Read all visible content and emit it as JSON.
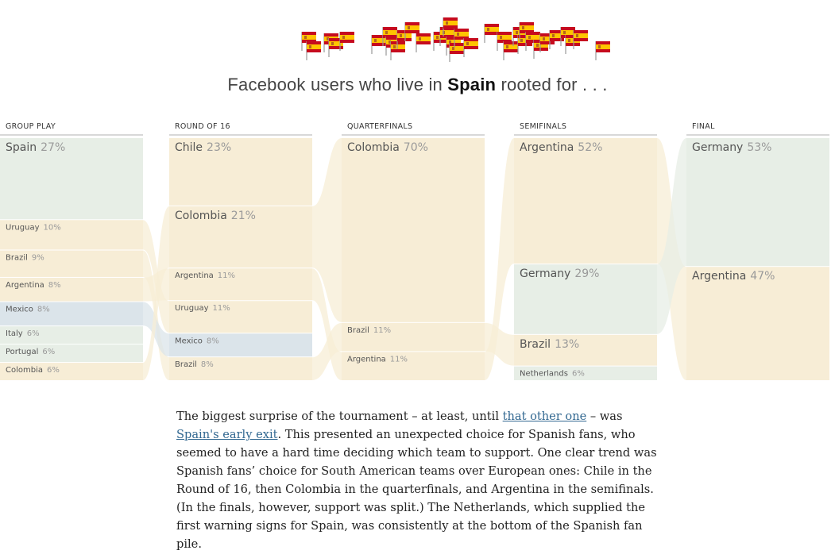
{
  "header": {
    "title_prefix": "Facebook users who live in",
    "country": "Spain",
    "title_suffix": "rooted for . . ."
  },
  "colors": {
    "south_america": "#f7edd6",
    "europe": "#e7eee6",
    "central_america": "#dbe4ea",
    "africa": "#f0d4d0",
    "stage_rule": "#d8d8d8",
    "label_team": "#555555",
    "label_pct": "#9a9a9a",
    "link": "#326891"
  },
  "flag_icon": "spain-flag-icon",
  "chart_data": {
    "type": "sankey",
    "stages": [
      {
        "name": "GROUP PLAY",
        "teams": [
          {
            "name": "Spain",
            "pct": 27,
            "region": "europe"
          },
          {
            "name": "Uruguay",
            "pct": 10,
            "region": "south_america"
          },
          {
            "name": "Brazil",
            "pct": 9,
            "region": "south_america"
          },
          {
            "name": "Argentina",
            "pct": 8,
            "region": "south_america"
          },
          {
            "name": "Mexico",
            "pct": 8,
            "region": "central_america"
          },
          {
            "name": "Italy",
            "pct": 6,
            "region": "europe"
          },
          {
            "name": "Portugal",
            "pct": 6,
            "region": "europe"
          },
          {
            "name": "Colombia",
            "pct": 6,
            "region": "south_america"
          }
        ]
      },
      {
        "name": "ROUND OF 16",
        "teams": [
          {
            "name": "Chile",
            "pct": 23,
            "region": "south_america"
          },
          {
            "name": "Colombia",
            "pct": 21,
            "region": "south_america"
          },
          {
            "name": "Argentina",
            "pct": 11,
            "region": "south_america"
          },
          {
            "name": "Uruguay",
            "pct": 11,
            "region": "south_america"
          },
          {
            "name": "Mexico",
            "pct": 8,
            "region": "central_america"
          },
          {
            "name": "Brazil",
            "pct": 8,
            "region": "south_america"
          }
        ]
      },
      {
        "name": "QUARTERFINALS",
        "teams": [
          {
            "name": "Colombia",
            "pct": 70,
            "region": "south_america"
          },
          {
            "name": "Brazil",
            "pct": 11,
            "region": "south_america"
          },
          {
            "name": "Argentina",
            "pct": 11,
            "region": "south_america"
          }
        ]
      },
      {
        "name": "SEMIFINALS",
        "teams": [
          {
            "name": "Argentina",
            "pct": 52,
            "region": "south_america"
          },
          {
            "name": "Germany",
            "pct": 29,
            "region": "europe"
          },
          {
            "name": "Brazil",
            "pct": 13,
            "region": "south_america"
          },
          {
            "name": "Netherlands",
            "pct": 6,
            "region": "europe"
          }
        ]
      },
      {
        "name": "FINAL",
        "teams": [
          {
            "name": "Germany",
            "pct": 53,
            "region": "europe"
          },
          {
            "name": "Argentina",
            "pct": 47,
            "region": "south_america"
          }
        ]
      }
    ]
  },
  "article": {
    "p1": "The biggest surprise of the tournament – at least, until",
    "link1": "that other one",
    "p2": "– was",
    "link2": "Spain's early exit",
    "p3": ". This presented an unexpected choice for Spanish fans, who seemed to have a hard time deciding which team to support. One clear trend was Spanish fans’ choice for South American teams over European ones: Chile in the Round of 16, then Colombia in the quarterfinals, and Argentina in the semifinals. (In the finals, however, support was split.) The Netherlands, which supplied the first warning signs for Spain, was consistently at the bottom of the Spanish fan pile."
  }
}
